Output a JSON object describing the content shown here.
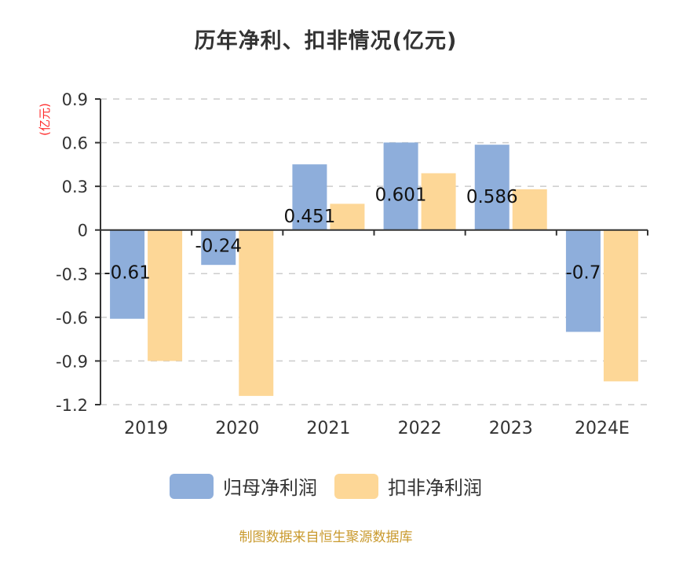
{
  "chart_data": {
    "type": "bar",
    "title": "历年净利、扣非情况(亿元)",
    "ylabel": "(亿元)",
    "xlabel": "",
    "categories": [
      "2019",
      "2020",
      "2021",
      "2022",
      "2023",
      "2024E"
    ],
    "series": [
      {
        "name": "归母净利润",
        "color": "#8eaedb",
        "values": [
          -0.61,
          -0.24,
          0.451,
          0.601,
          0.586,
          -0.7
        ],
        "labels": [
          "-0.61",
          "-0.24",
          "0.451",
          "0.601",
          "0.586",
          "-0.7"
        ]
      },
      {
        "name": "扣非净利润",
        "color": "#fdd797",
        "values": [
          -0.9,
          -1.14,
          0.18,
          0.39,
          0.28,
          -1.04
        ]
      }
    ],
    "ylim": [
      -1.2,
      0.9
    ],
    "yticks": [
      "0.9",
      "0.6",
      "0.3",
      "0",
      "-0.3",
      "-0.6",
      "-0.9",
      "-1.2"
    ],
    "ytick_values": [
      0.9,
      0.6,
      0.3,
      0,
      -0.3,
      -0.6,
      -0.9,
      -1.2
    ],
    "grid": true,
    "legend_position": "bottom-center"
  },
  "footer": {
    "text": "制图数据来自恒生聚源数据库",
    "color": "#c99a2e"
  },
  "ylabel_color": "#ff2a2a"
}
